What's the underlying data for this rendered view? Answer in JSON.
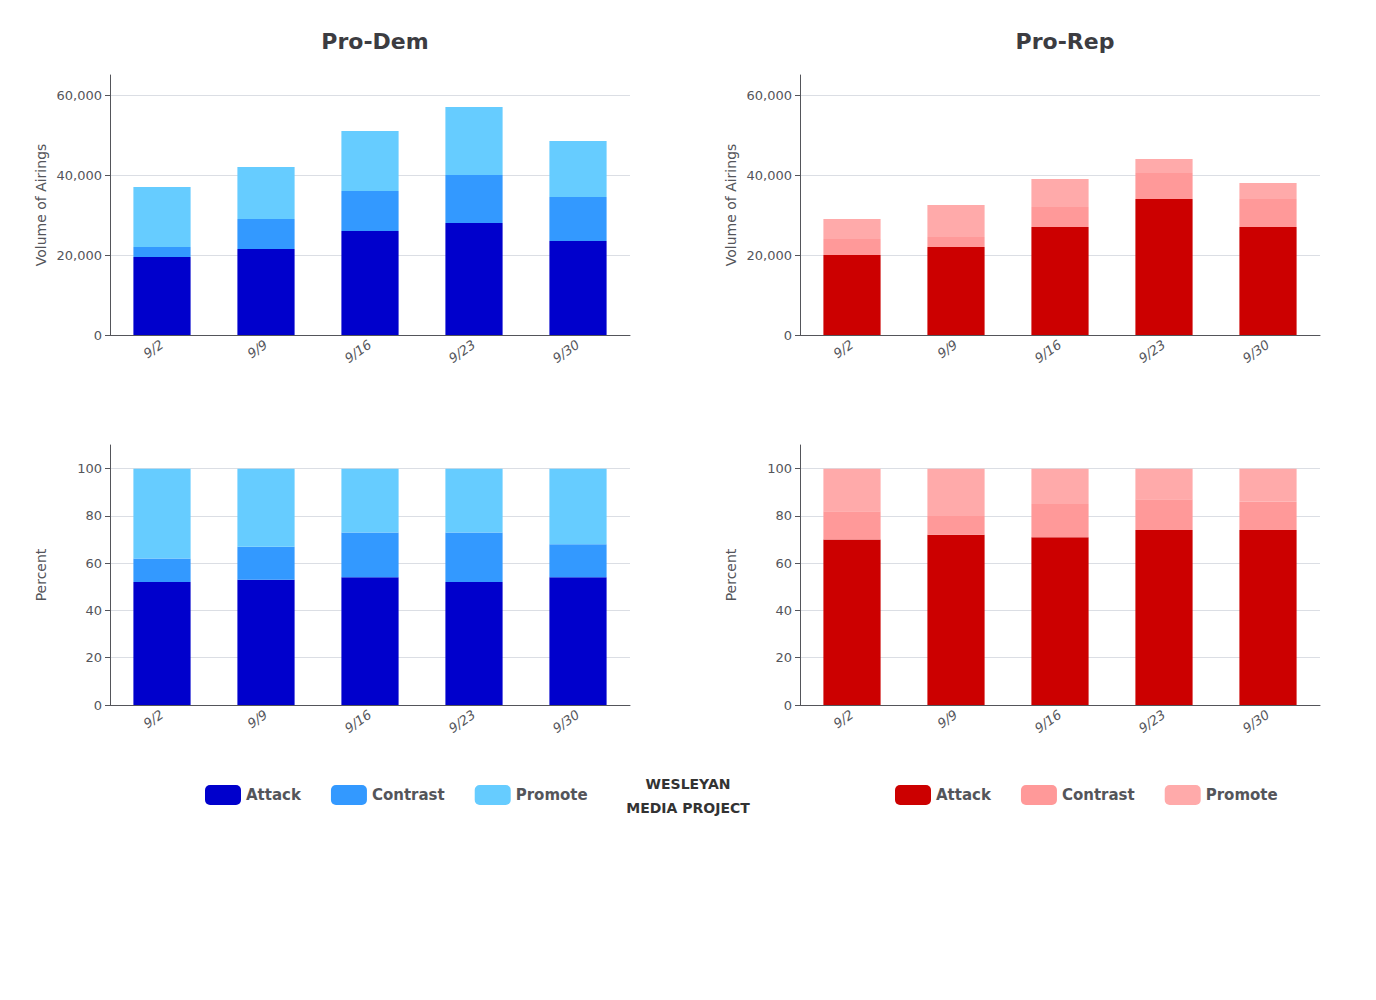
{
  "chart_data": [
    {
      "type": "bar",
      "title": "Pro-Dem",
      "categories": [
        "9/2",
        "9/9",
        "9/16",
        "9/23",
        "9/30"
      ],
      "series": [
        {
          "name": "Attack",
          "color": "#0000CC",
          "values": [
            19500,
            21500,
            26000,
            28000,
            23500
          ]
        },
        {
          "name": "Contrast",
          "color": "#3399FF",
          "values": [
            2500,
            7500,
            10000,
            12000,
            11000
          ]
        },
        {
          "name": "Promote",
          "color": "#66CCFF",
          "values": [
            15000,
            13000,
            15000,
            17000,
            14000
          ]
        }
      ],
      "ylabel": "Volume of Airings",
      "ylim": [
        0,
        65000
      ],
      "yticks": [
        0,
        {
          "value": 20000,
          "label": "20,000"
        },
        {
          "value": 40000,
          "label": "40,000"
        },
        {
          "value": 60000,
          "label": "60,000"
        }
      ],
      "grid": true,
      "stacked": true
    },
    {
      "type": "bar",
      "title": "Pro-Rep",
      "categories": [
        "9/2",
        "9/9",
        "9/16",
        "9/23",
        "9/30"
      ],
      "series": [
        {
          "name": "Attack",
          "color": "#CC0000",
          "values": [
            20000,
            22000,
            27000,
            34000,
            27000
          ]
        },
        {
          "name": "Contrast",
          "color": "#FF9999",
          "values": [
            4000,
            2500,
            5000,
            6500,
            7000
          ]
        },
        {
          "name": "Promote",
          "color": "#FFAAAA",
          "values": [
            5000,
            8000,
            7000,
            3500,
            4000
          ]
        }
      ],
      "ylabel": "Volume of Airings",
      "ylim": [
        0,
        65000
      ],
      "yticks": [
        0,
        {
          "value": 20000,
          "label": "20,000"
        },
        {
          "value": 40000,
          "label": "40,000"
        },
        {
          "value": 60000,
          "label": "60,000"
        }
      ],
      "grid": true,
      "stacked": true
    },
    {
      "type": "bar",
      "categories": [
        "9/2",
        "9/9",
        "9/16",
        "9/23",
        "9/30"
      ],
      "series": [
        {
          "name": "Attack",
          "color": "#0000CC",
          "values": [
            52,
            53,
            54,
            52,
            54
          ]
        },
        {
          "name": "Contrast",
          "color": "#3399FF",
          "values": [
            10,
            14,
            19,
            21,
            14
          ]
        },
        {
          "name": "Promote",
          "color": "#66CCFF",
          "values": [
            38,
            33,
            27,
            27,
            32
          ]
        }
      ],
      "ylabel": "Percent",
      "ylim": [
        0,
        110
      ],
      "yticks": [
        0,
        20,
        40,
        60,
        80,
        100
      ],
      "grid": true,
      "stacked": true,
      "legend": "bottom"
    },
    {
      "type": "bar",
      "categories": [
        "9/2",
        "9/9",
        "9/16",
        "9/23",
        "9/30"
      ],
      "series": [
        {
          "name": "Attack",
          "color": "#CC0000",
          "values": [
            70,
            72,
            71,
            74,
            74
          ]
        },
        {
          "name": "Contrast",
          "color": "#FF9999",
          "values": [
            12,
            8,
            14,
            13,
            12
          ]
        },
        {
          "name": "Promote",
          "color": "#FFAAAA",
          "values": [
            18,
            20,
            15,
            13,
            14
          ]
        }
      ],
      "ylabel": "Percent",
      "ylim": [
        0,
        110
      ],
      "yticks": [
        0,
        20,
        40,
        60,
        80,
        100
      ],
      "grid": true,
      "stacked": true,
      "legend": "bottom",
      "annotations": [
        "WESLEYAN",
        "MEDIA PROJECT"
      ]
    }
  ]
}
